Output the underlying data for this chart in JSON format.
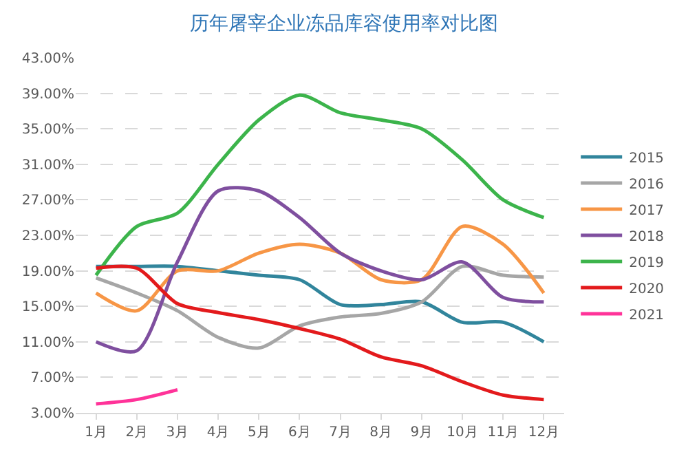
{
  "chart_data": {
    "type": "line",
    "title": "历年屠宰企业冻品库容使用率对比图",
    "categories": [
      "1月",
      "2月",
      "3月",
      "4月",
      "5月",
      "6月",
      "7月",
      "8月",
      "9月",
      "10月",
      "11月",
      "12月"
    ],
    "series": [
      {
        "name": "2015",
        "color": "#31859c",
        "values": [
          19.5,
          19.5,
          19.5,
          19,
          18.5,
          18,
          15.2,
          15.2,
          15.5,
          13.2,
          13.2,
          11
        ]
      },
      {
        "name": "2016",
        "color": "#a6a6a6",
        "values": [
          18.2,
          16.5,
          14.5,
          11.5,
          10.3,
          12.8,
          13.8,
          14.2,
          15.5,
          19.5,
          18.5,
          18.3
        ]
      },
      {
        "name": "2017",
        "color": "#f79646",
        "values": [
          16.5,
          14.5,
          19,
          19,
          21,
          22,
          21,
          18,
          18,
          24,
          22,
          16.5
        ]
      },
      {
        "name": "2018",
        "color": "#7f4f9f",
        "values": [
          11,
          10,
          20,
          28,
          28,
          25,
          21,
          19,
          18,
          20,
          16,
          15.5
        ]
      },
      {
        "name": "2019",
        "color": "#3cb44b",
        "values": [
          18.5,
          24,
          25.5,
          31,
          36,
          38.8,
          36.8,
          36,
          35,
          31.5,
          27,
          25
        ]
      },
      {
        "name": "2020",
        "color": "#e31a1c",
        "values": [
          19.3,
          19.3,
          15.3,
          14.3,
          13.5,
          12.5,
          11.3,
          9.3,
          8.3,
          6.5,
          5,
          4.5
        ]
      },
      {
        "name": "2021",
        "color": "#ff3399",
        "values": [
          4,
          4.5,
          5.6,
          null,
          null,
          null,
          null,
          null,
          null,
          null,
          null,
          null
        ]
      }
    ],
    "ylim": [
      3,
      43
    ],
    "yticks": [
      {
        "value": 3,
        "label": "3.00%"
      },
      {
        "value": 7,
        "label": "7.00%"
      },
      {
        "value": 11,
        "label": "11.00%"
      },
      {
        "value": 15,
        "label": "15.00%"
      },
      {
        "value": 19,
        "label": "19.00%"
      },
      {
        "value": 23,
        "label": "23.00%"
      },
      {
        "value": 27,
        "label": "27.00%"
      },
      {
        "value": 31,
        "label": "31.00%"
      },
      {
        "value": 35,
        "label": "35.00%"
      },
      {
        "value": 39,
        "label": "39.00%"
      },
      {
        "value": 43,
        "label": "43.00%"
      }
    ],
    "grid": "y",
    "legend": "right",
    "marker": "none",
    "line_style": "solid"
  }
}
